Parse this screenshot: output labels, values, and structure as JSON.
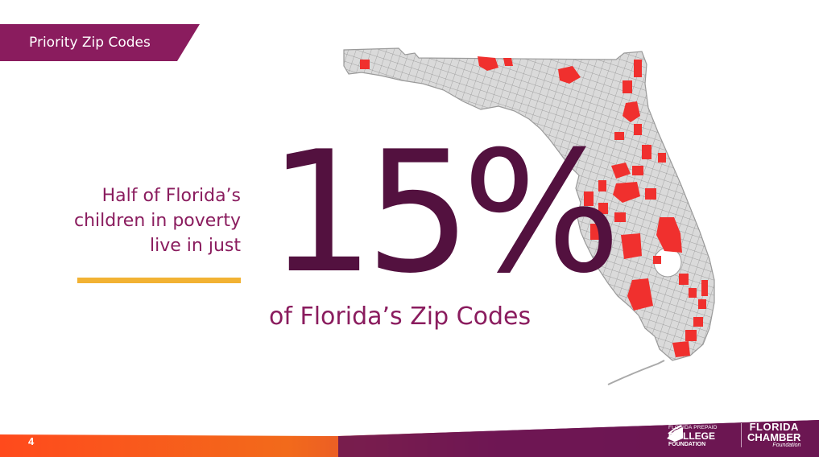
{
  "tag": {
    "label": "Priority Zip Codes"
  },
  "intro": {
    "lines": [
      "Half of Florida’s",
      "children in poverty",
      "live in just"
    ]
  },
  "stat": {
    "value": "15%",
    "caption": "of Florida’s Zip Codes"
  },
  "footer": {
    "page_number": "4",
    "logo_college": {
      "line1": "FLORIDA PREPAID",
      "line2": "COLLEGE",
      "line3": "FOUNDATION"
    },
    "logo_chamber": {
      "line1": "FLORIDA",
      "line2": "CHAMBER",
      "line3": "Foundation"
    }
  },
  "colors": {
    "accent": "#8a1c5e",
    "dark": "#53113f",
    "highlight": "#f2b233",
    "zip_priority": "#f0302e",
    "zip_other": "#d8d8d8"
  }
}
